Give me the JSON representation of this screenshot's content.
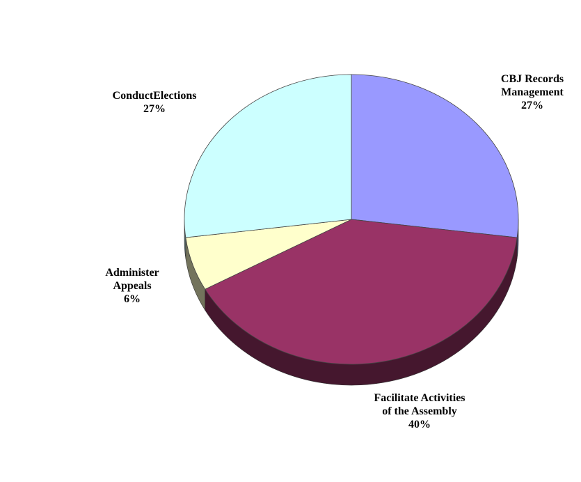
{
  "chart_data": {
    "type": "pie",
    "categories": [
      "CBJ Records Management",
      "Facilitate Activities of the Assembly",
      "Administer Appeals",
      "ConductElections"
    ],
    "values": [
      27,
      40,
      6,
      27
    ],
    "value_labels": [
      "27%",
      "40%",
      "6%",
      "27%"
    ],
    "colors": [
      "#9999ff",
      "#993366",
      "#ffffcc",
      "#ccffff"
    ]
  }
}
